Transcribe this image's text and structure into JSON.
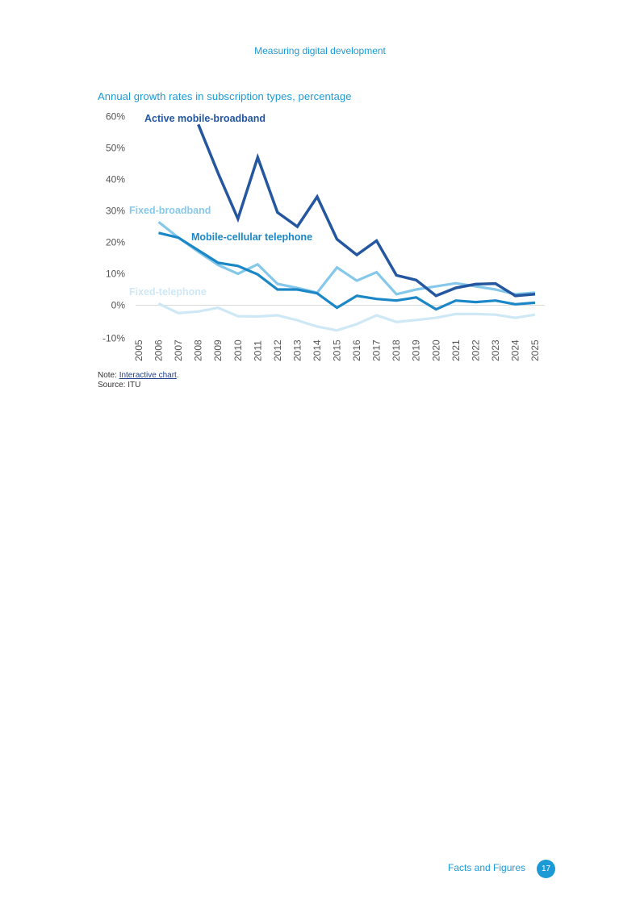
{
  "header": {
    "title": "Measuring digital development"
  },
  "note": {
    "prefix": "Note: ",
    "link": "Interactive chart",
    "suffix": ".",
    "source": "Source: ITU"
  },
  "footer": {
    "label": "Facts and Figures",
    "page": "17"
  },
  "colors": {
    "active_mobile_broadband": "#24579f",
    "fixed_broadband": "#86c8ea",
    "mobile_cellular": "#1b87c6",
    "fixed_telephone": "#cfe8f6",
    "axis_text": "#555555",
    "zero_line": "#d9d9d9"
  },
  "chart_data": {
    "type": "line",
    "title": "Annual growth rates in subscription types, percentage",
    "xlabel": "",
    "ylabel": "",
    "x": [
      2005,
      2006,
      2007,
      2008,
      2009,
      2010,
      2011,
      2012,
      2013,
      2014,
      2015,
      2016,
      2017,
      2018,
      2019,
      2020,
      2021,
      2022,
      2023,
      2024,
      2025
    ],
    "ylim": [
      -10,
      60
    ],
    "yticks": [
      60,
      50,
      40,
      30,
      20,
      10,
      0,
      -10
    ],
    "ytick_labels": [
      "60%",
      "50%",
      "40%",
      "30%",
      "20%",
      "10%",
      "0%",
      "-10%"
    ],
    "grid": false,
    "series": [
      {
        "name": "Fixed-telephone",
        "key": "fixed_telephone",
        "values": [
          null,
          0.5,
          -2.5,
          -2,
          -0.8,
          -3.5,
          -3.6,
          -3.2,
          -4.8,
          -6.8,
          -8,
          -6,
          -3.2,
          -5.3,
          -4.7,
          -4,
          -2.8,
          -2.8,
          -3,
          -4,
          -3
        ]
      },
      {
        "name": "Fixed-broadband",
        "key": "fixed_broadband",
        "values": [
          null,
          26.5,
          21.5,
          17,
          12.8,
          10,
          13,
          6.8,
          5.5,
          4,
          12,
          7.8,
          10.5,
          3.5,
          5,
          6,
          7,
          6,
          5,
          3.5,
          4
        ]
      },
      {
        "name": "Mobile-cellular telephone",
        "key": "mobile_cellular",
        "values": [
          null,
          23,
          21.5,
          17.5,
          13.5,
          12.5,
          9.8,
          5,
          5,
          3.8,
          -0.8,
          3,
          2,
          1.5,
          2.5,
          -1.3,
          1.5,
          1,
          1.5,
          0.3,
          0.8
        ]
      },
      {
        "name": "Active mobile-broadband",
        "key": "active_mobile_broadband",
        "values": [
          null,
          null,
          null,
          57.5,
          42,
          27.5,
          47,
          29.5,
          25,
          34.5,
          21,
          16,
          20.5,
          9.5,
          8,
          3,
          5.5,
          6.7,
          6.9,
          3,
          3.5
        ]
      }
    ],
    "labels": [
      {
        "text": "Active mobile-broadband",
        "series": "active_mobile_broadband"
      },
      {
        "text": "Fixed-broadband",
        "series": "fixed_broadband"
      },
      {
        "text": "Mobile-cellular telephone",
        "series": "mobile_cellular"
      },
      {
        "text": "Fixed-telephone",
        "series": "fixed_telephone"
      }
    ]
  }
}
